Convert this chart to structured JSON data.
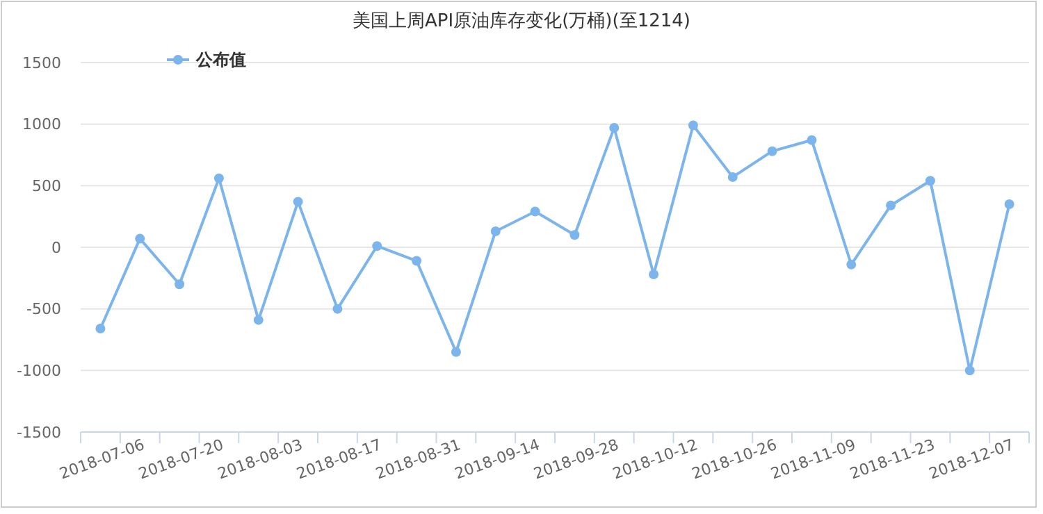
{
  "chart_data": {
    "type": "line",
    "title": "美国上周API原油库存变化(万桶)(至1214)",
    "categories": [
      null,
      "2018-07-06",
      null,
      "2018-07-20",
      null,
      "2018-08-03",
      null,
      "2018-08-17",
      null,
      "2018-08-31",
      null,
      "2018-09-14",
      null,
      "2018-09-28",
      null,
      "2018-10-12",
      null,
      "2018-10-26",
      null,
      "2018-11-09",
      null,
      "2018-11-23",
      null,
      "2018-12-07"
    ],
    "series": [
      {
        "name": "公布值",
        "color": "#7cb5ec",
        "values": [
          -660,
          70,
          -300,
          560,
          -590,
          370,
          -500,
          10,
          -110,
          -850,
          130,
          290,
          100,
          970,
          -220,
          990,
          570,
          780,
          870,
          -140,
          340,
          540,
          -1000,
          350
        ]
      }
    ],
    "ylim": [
      -1500,
      1500
    ],
    "yticks": [
      -1500,
      -1000,
      -500,
      0,
      500,
      1000,
      1500
    ],
    "grid": "y",
    "legend": "top left",
    "marker": "circle",
    "line_style": "solid"
  }
}
